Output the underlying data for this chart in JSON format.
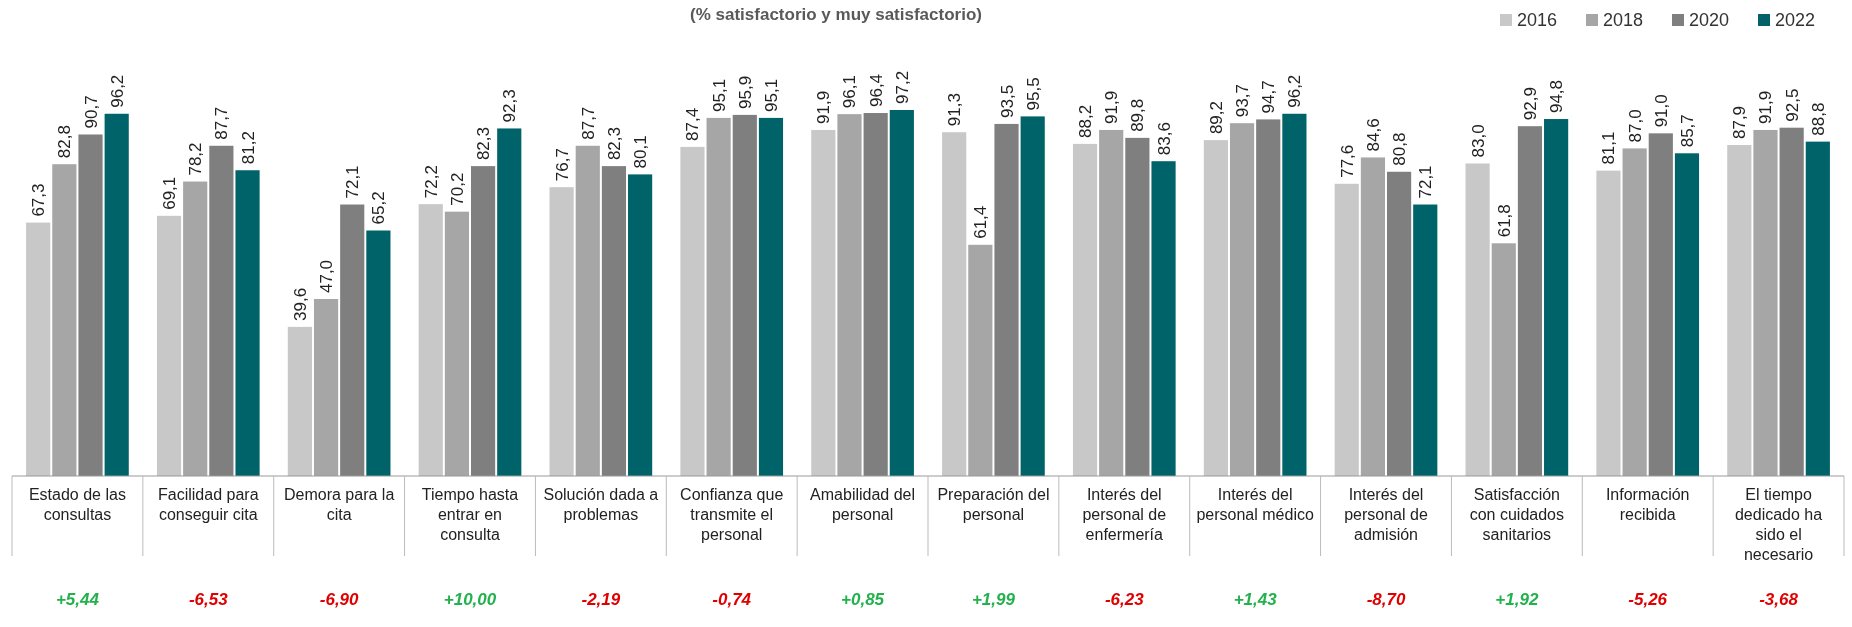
{
  "chart_data": {
    "type": "bar",
    "title": "(% satisfactorio y muy satisfactorio)",
    "categories": [
      "Estado de las consultas",
      "Facilidad para conseguir cita",
      "Demora para la cita",
      "Tiempo hasta entrar en consulta",
      "Solución dada a problemas",
      "Confianza que transmite el personal",
      "Amabilidad del personal",
      "Preparación del personal",
      "Interés del personal de enfermería",
      "Interés del personal médico",
      "Interés del personal de admisión",
      "Satisfacción con cuidados sanitarios",
      "Información recibida",
      "El tiempo dedicado ha sido el necesario"
    ],
    "series": [
      {
        "name": "2016",
        "color": "#c8c8c8",
        "values": [
          67.3,
          69.1,
          39.6,
          72.2,
          76.7,
          87.4,
          91.9,
          91.3,
          88.2,
          89.2,
          77.6,
          83.0,
          81.1,
          87.9
        ],
        "value_labels": [
          "67,3",
          "69,1",
          "39,6",
          "72,2",
          "76,7",
          "87,4",
          "91,9",
          "91,3",
          "88,2",
          "89,2",
          "77,6",
          "83,0",
          "81,1",
          "87,9"
        ]
      },
      {
        "name": "2018",
        "color": "#a6a6a6",
        "values": [
          82.8,
          78.2,
          47.0,
          70.2,
          87.7,
          95.1,
          96.1,
          61.4,
          91.9,
          93.7,
          84.6,
          61.8,
          87.0,
          91.9
        ],
        "value_labels": [
          "82,8",
          "78,2",
          "47,0",
          "70,2",
          "87,7",
          "95,1",
          "96,1",
          "61,4",
          "91,9",
          "93,7",
          "84,6",
          "61,8",
          "87,0",
          "91,9"
        ]
      },
      {
        "name": "2020",
        "color": "#7f7f7f",
        "values": [
          90.7,
          87.7,
          72.1,
          82.3,
          82.3,
          95.9,
          96.4,
          93.5,
          89.8,
          94.7,
          80.8,
          92.9,
          91.0,
          92.5
        ],
        "value_labels": [
          "90,7",
          "87,7",
          "72,1",
          "82,3",
          "82,3",
          "95,9",
          "96,4",
          "93,5",
          "89,8",
          "94,7",
          "80,8",
          "92,9",
          "91,0",
          "92,5"
        ]
      },
      {
        "name": "2022",
        "color": "#00636a",
        "values": [
          96.2,
          81.2,
          65.2,
          92.3,
          80.1,
          95.1,
          97.2,
          95.5,
          83.6,
          96.2,
          72.1,
          94.8,
          85.7,
          88.8
        ],
        "value_labels": [
          "96,2",
          "81,2",
          "65,2",
          "92,3",
          "80,1",
          "95,1",
          "97,2",
          "95,5",
          "83,6",
          "96,2",
          "72,1",
          "94,8",
          "85,7",
          "88,8"
        ]
      }
    ],
    "legend": "top right",
    "annotations": [
      "+5,44",
      "-6,53",
      "-6,90",
      "+10,00",
      "-2,19",
      "-0,74",
      "+0,85",
      "+1,99",
      "-6,23",
      "+1,43",
      "-8,70",
      "+1,92",
      "-5,26",
      "-3,68"
    ]
  }
}
